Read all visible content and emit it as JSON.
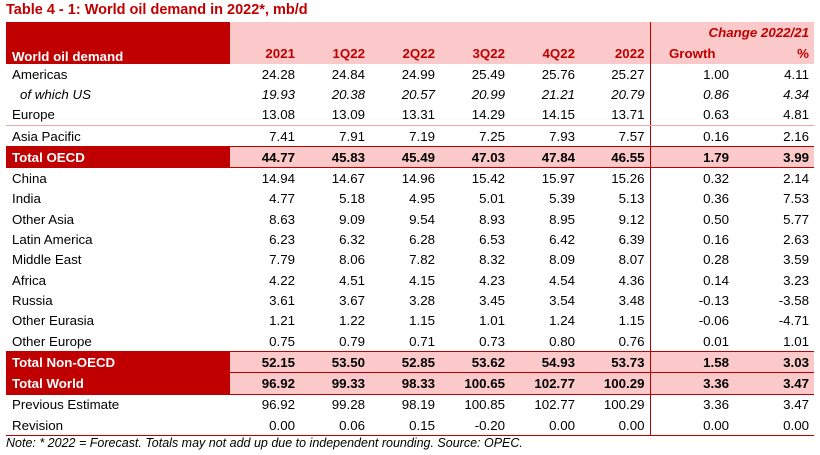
{
  "title": "Table 4 - 1: World oil demand in 2022*, mb/d",
  "header": {
    "label": "World oil demand",
    "change_group": "Change 2022/21",
    "columns": [
      "2021",
      "1Q22",
      "2Q22",
      "3Q22",
      "4Q22",
      "2022",
      "Growth",
      "%"
    ]
  },
  "rows": [
    {
      "label": "Americas",
      "values": [
        "24.28",
        "24.84",
        "24.99",
        "25.49",
        "25.76",
        "25.27",
        "1.00",
        "4.11"
      ]
    },
    {
      "label": "of which US",
      "values": [
        "19.93",
        "20.38",
        "20.57",
        "20.99",
        "21.21",
        "20.79",
        "0.86",
        "4.34"
      ]
    },
    {
      "label": "Europe",
      "values": [
        "13.08",
        "13.09",
        "13.31",
        "14.29",
        "14.15",
        "13.71",
        "0.63",
        "4.81"
      ]
    },
    {
      "label": "Asia Pacific",
      "values": [
        "7.41",
        "7.91",
        "7.19",
        "7.25",
        "7.93",
        "7.57",
        "0.16",
        "2.16"
      ]
    },
    {
      "label": "Total OECD",
      "values": [
        "44.77",
        "45.83",
        "45.49",
        "47.03",
        "47.84",
        "46.55",
        "1.79",
        "3.99"
      ]
    },
    {
      "label": "China",
      "values": [
        "14.94",
        "14.67",
        "14.96",
        "15.42",
        "15.97",
        "15.26",
        "0.32",
        "2.14"
      ]
    },
    {
      "label": "India",
      "values": [
        "4.77",
        "5.18",
        "4.95",
        "5.01",
        "5.39",
        "5.13",
        "0.36",
        "7.53"
      ]
    },
    {
      "label": "Other Asia",
      "values": [
        "8.63",
        "9.09",
        "9.54",
        "8.93",
        "8.95",
        "9.12",
        "0.50",
        "5.77"
      ]
    },
    {
      "label": "Latin America",
      "values": [
        "6.23",
        "6.32",
        "6.28",
        "6.53",
        "6.42",
        "6.39",
        "0.16",
        "2.63"
      ]
    },
    {
      "label": "Middle East",
      "values": [
        "7.79",
        "8.06",
        "7.82",
        "8.32",
        "8.09",
        "8.07",
        "0.28",
        "3.59"
      ]
    },
    {
      "label": "Africa",
      "values": [
        "4.22",
        "4.51",
        "4.15",
        "4.23",
        "4.54",
        "4.36",
        "0.14",
        "3.23"
      ]
    },
    {
      "label": "Russia",
      "values": [
        "3.61",
        "3.67",
        "3.28",
        "3.45",
        "3.54",
        "3.48",
        "-0.13",
        "-3.58"
      ]
    },
    {
      "label": "Other Eurasia",
      "values": [
        "1.21",
        "1.22",
        "1.15",
        "1.01",
        "1.24",
        "1.15",
        "-0.06",
        "-4.71"
      ]
    },
    {
      "label": "Other Europe",
      "values": [
        "0.75",
        "0.79",
        "0.71",
        "0.73",
        "0.80",
        "0.76",
        "0.01",
        "1.01"
      ]
    },
    {
      "label": "Total Non-OECD",
      "values": [
        "52.15",
        "53.50",
        "52.85",
        "53.62",
        "54.93",
        "53.73",
        "1.58",
        "3.03"
      ]
    },
    {
      "label": "Total World",
      "values": [
        "96.92",
        "99.33",
        "98.33",
        "100.65",
        "102.77",
        "100.29",
        "3.36",
        "3.47"
      ]
    },
    {
      "label": "Previous Estimate",
      "values": [
        "96.92",
        "99.28",
        "98.19",
        "100.85",
        "102.77",
        "100.29",
        "3.36",
        "3.47"
      ]
    },
    {
      "label": "Revision",
      "values": [
        "0.00",
        "0.06",
        "0.15",
        "-0.20",
        "0.00",
        "0.00",
        "0.00",
        "0.00"
      ]
    }
  ],
  "note": "Note: * 2022 = Forecast. Totals may not add up due to independent rounding. Source: OPEC."
}
